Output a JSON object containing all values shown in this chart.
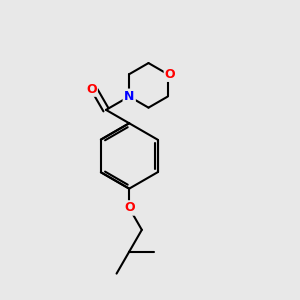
{
  "bg_color": "#e8e8e8",
  "bond_color": "#000000",
  "N_color": "#0000ff",
  "O_color": "#ff0000",
  "bond_width": 1.5,
  "fig_size": [
    3.0,
    3.0
  ],
  "dpi": 100,
  "xlim": [
    0,
    10
  ],
  "ylim": [
    0,
    10
  ]
}
